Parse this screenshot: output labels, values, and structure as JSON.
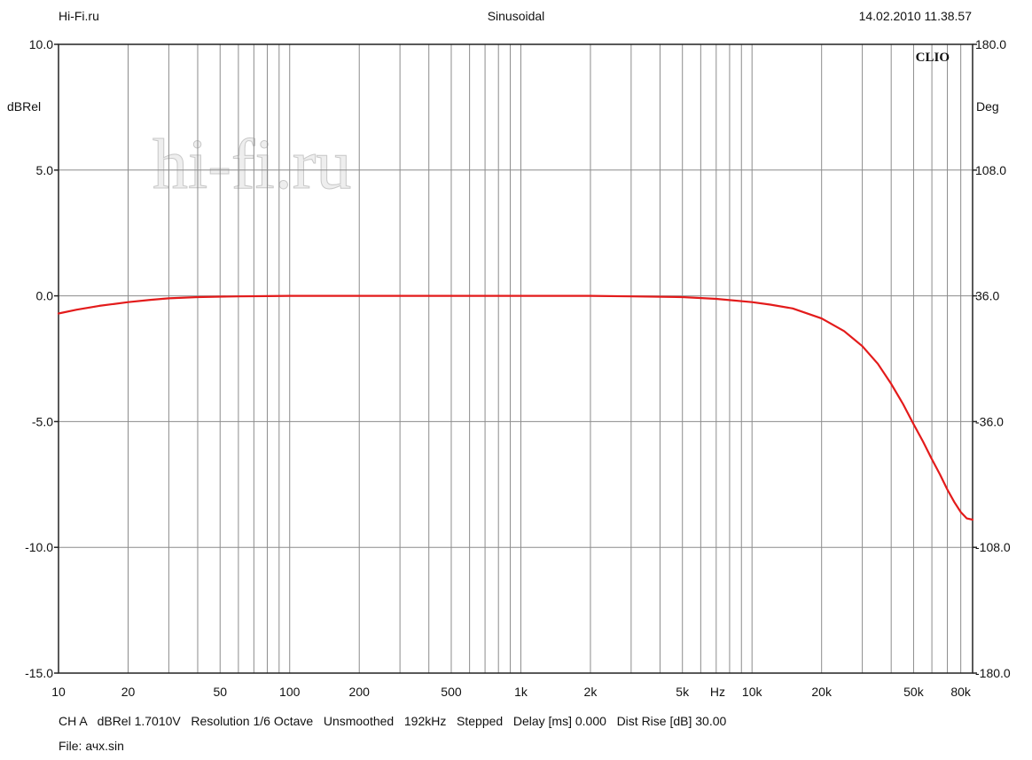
{
  "header": {
    "left": "Hi-Fi.ru",
    "center": "Sinusoidal",
    "right": "14.02.2010 11.38.57"
  },
  "footer": {
    "line1": "CH A   dBRel 1.7010V   Resolution 1/6 Octave   Unsmoothed   192kHz   Stepped   Delay [ms] 0.000   Dist Rise [dB] 30.00",
    "line2": "File: ачх.sin"
  },
  "watermark": {
    "brand": "hi-fi.ru"
  },
  "colors": {
    "curve": "#e31b1b",
    "grid": "#8c8c8c",
    "background": "#ffffff"
  },
  "chart_data": {
    "type": "line",
    "xscale": "log",
    "grid": true,
    "brand_label": "CLIO",
    "xlim": [
      10,
      90000
    ],
    "ylim": [
      -15,
      10
    ],
    "y2lim": [
      -180,
      180
    ],
    "ylabel": "dBRel",
    "y2label": "Deg",
    "x_ticks": [
      {
        "value": 10,
        "label": "10"
      },
      {
        "value": 20,
        "label": "20"
      },
      {
        "value": 50,
        "label": "50"
      },
      {
        "value": 100,
        "label": "100"
      },
      {
        "value": 200,
        "label": "200"
      },
      {
        "value": 500,
        "label": "500"
      },
      {
        "value": 1000,
        "label": "1k"
      },
      {
        "value": 2000,
        "label": "2k"
      },
      {
        "value": 5000,
        "label": "5k"
      },
      {
        "value": 10000,
        "label": "10k"
      },
      {
        "value": 20000,
        "label": "20k"
      },
      {
        "value": 50000,
        "label": "50k"
      },
      {
        "value": 80000,
        "label": "80k"
      }
    ],
    "x_unit_label": "Hz",
    "y_ticks": [
      {
        "value": 10,
        "label": "10.0"
      },
      {
        "value": 5,
        "label": "5.0"
      },
      {
        "value": 0,
        "label": "0.0"
      },
      {
        "value": -5,
        "label": "-5.0"
      },
      {
        "value": -10,
        "label": "-10.0"
      },
      {
        "value": -15,
        "label": "-15.0"
      }
    ],
    "y2_ticks": [
      {
        "value": 180,
        "label": "180.0"
      },
      {
        "value": 108,
        "label": "108.0"
      },
      {
        "value": 36,
        "label": "36.0"
      },
      {
        "value": -36,
        "label": "-36.0"
      },
      {
        "value": -108,
        "label": "-108.0"
      },
      {
        "value": -180,
        "label": "-180.0"
      }
    ],
    "series": [
      {
        "color": "#e31b1b",
        "x": [
          10,
          12,
          15,
          20,
          25,
          30,
          40,
          50,
          60,
          80,
          100,
          200,
          500,
          1000,
          2000,
          3000,
          5000,
          7000,
          10000,
          12000,
          15000,
          20000,
          25000,
          30000,
          35000,
          40000,
          45000,
          50000,
          55000,
          60000,
          65000,
          70000,
          75000,
          80000,
          85000,
          90000
        ],
        "y": [
          -0.7,
          -0.55,
          -0.4,
          -0.25,
          -0.16,
          -0.1,
          -0.05,
          -0.03,
          -0.02,
          -0.01,
          0,
          0,
          0,
          0,
          0,
          -0.02,
          -0.05,
          -0.12,
          -0.25,
          -0.35,
          -0.5,
          -0.9,
          -1.4,
          -2.0,
          -2.7,
          -3.5,
          -4.3,
          -5.1,
          -5.8,
          -6.5,
          -7.1,
          -7.7,
          -8.2,
          -8.6,
          -8.85,
          -8.9
        ]
      }
    ]
  }
}
